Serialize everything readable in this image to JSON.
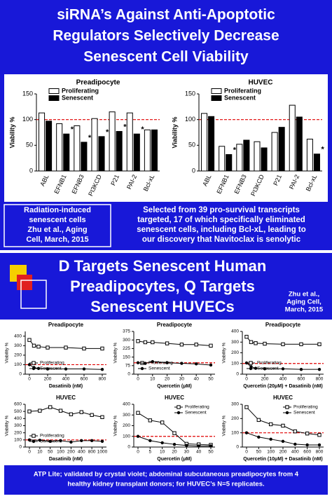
{
  "slide1": {
    "title_lines": [
      "siRNA’s Against Anti-Apoptotic",
      "Regulators Selectively Decrease",
      "Senescent Cell Viability"
    ],
    "left_lines": [
      "Radiation-induced",
      "senescent cells",
      "Zhu et al., Aging",
      "Cell, March, 2015"
    ],
    "right_lines": [
      "Selected from 39 pro-survival transcripts",
      "targeted, 17 of which specifically eliminated",
      "senescent cells, including Bcl-xL, leading to",
      "our discovery that Navitoclax is senolytic"
    ]
  },
  "slide2": {
    "title_lines": [
      "D Targets Senescent Human",
      "Preadipocytes, Q Targets",
      "Senescent HUVECs"
    ],
    "citation_lines": [
      "Zhu et al.,",
      "Aging Cell,",
      "March, 2015"
    ],
    "footer_lines": [
      "ATP Lite; validated by crystal violet; abdominal subcutaneous preadipocytes from 4",
      "healthy kidney transplant donors; for HUVEC’s N=5 replicates."
    ]
  },
  "chart_data": [
    {
      "type": "bar",
      "title": "Preadipocyte",
      "ylabel": "Viability %",
      "categories": [
        "ABL",
        "EFNB1",
        "EFNB3",
        "PI3KCD",
        "P21",
        "PAI-2",
        "Bcl-xL"
      ],
      "series": [
        {
          "name": "Proliferating",
          "color": "#ffffff",
          "values": [
            113,
            92,
            88,
            102,
            115,
            113,
            80
          ]
        },
        {
          "name": "Senescent",
          "color": "#000000",
          "values": [
            97,
            72,
            56,
            67,
            77,
            72,
            80
          ],
          "significance": [
            null,
            "*",
            "*",
            "*",
            "*",
            "*",
            null
          ]
        }
      ],
      "ylim": [
        0,
        150
      ],
      "yticks": [
        0,
        50,
        100,
        150
      ],
      "reference_line": 100,
      "reference_color": "#e00000"
    },
    {
      "type": "bar",
      "title": "HUVEC",
      "ylabel": "Viability %",
      "categories": [
        "ABL",
        "EFNB1",
        "EFNB3",
        "PI3KCD",
        "P21",
        "PAI-2",
        "Bcl-xL"
      ],
      "series": [
        {
          "name": "Proliferating",
          "color": "#ffffff",
          "values": [
            112,
            48,
            52,
            57,
            75,
            128,
            62
          ]
        },
        {
          "name": "Senescent",
          "color": "#000000",
          "values": [
            106,
            32,
            60,
            45,
            85,
            105,
            33
          ],
          "significance": [
            null,
            "*",
            null,
            null,
            null,
            null,
            "*"
          ]
        }
      ],
      "ylim": [
        0,
        150
      ],
      "yticks": [
        0,
        50,
        100,
        150
      ],
      "reference_line": 100,
      "reference_color": "#e00000"
    },
    {
      "type": "line",
      "title": "Preadipocyte",
      "ylabel": "Viability %",
      "xlabel": "Dasatinib (nM)",
      "x": [
        0,
        50,
        100,
        200,
        400,
        600,
        800
      ],
      "xlim": [
        0,
        800
      ],
      "xticks": [
        0,
        200,
        400,
        600,
        800
      ],
      "series": [
        {
          "name": "Proliferating",
          "color": "#000000",
          "marker": "square",
          "values": [
            360,
            300,
            290,
            280,
            280,
            270,
            270
          ]
        },
        {
          "name": "Senescent",
          "color": "#000000",
          "marker": "circle",
          "values": [
            100,
            70,
            60,
            55,
            55,
            55,
            50
          ]
        }
      ],
      "ylim": [
        0,
        450
      ],
      "yticks": [
        0,
        100,
        200,
        300,
        400
      ],
      "reference_line": 100,
      "reference_color": "#e00000",
      "legend": "lower left"
    },
    {
      "type": "line",
      "title": "Preadipocyte",
      "ylabel": "Viability %",
      "xlabel": "Quercetin (μM)",
      "x": [
        0,
        5,
        10,
        20,
        30,
        40,
        50
      ],
      "xlim": [
        0,
        50
      ],
      "xticks": [
        0,
        10,
        20,
        30,
        40,
        50
      ],
      "series": [
        {
          "name": "Proliferating",
          "color": "#000000",
          "marker": "square",
          "values": [
            290,
            280,
            280,
            270,
            260,
            260,
            250
          ]
        },
        {
          "name": "Senescent",
          "color": "#000000",
          "marker": "circle",
          "values": [
            100,
            95,
            110,
            100,
            95,
            90,
            80
          ]
        }
      ],
      "ylim": [
        0,
        375
      ],
      "yticks": [
        0,
        75,
        150,
        225,
        300,
        375
      ],
      "reference_line": 100,
      "reference_color": "#e00000",
      "legend": "lower left"
    },
    {
      "type": "line",
      "title": "Preadipocyte",
      "ylabel": "Viability %",
      "xlabel": "Quercetin (20μM) + Dasatinib (nM)",
      "x": [
        0,
        50,
        100,
        200,
        400,
        600,
        800
      ],
      "xlim": [
        0,
        800
      ],
      "xticks": [
        0,
        200,
        400,
        600,
        800
      ],
      "series": [
        {
          "name": "Proliferating",
          "color": "#000000",
          "marker": "square",
          "values": [
            350,
            300,
            290,
            285,
            280,
            280,
            280
          ]
        },
        {
          "name": "Senescent",
          "color": "#000000",
          "marker": "circle",
          "values": [
            105,
            70,
            55,
            50,
            50,
            45,
            45
          ]
        }
      ],
      "ylim": [
        0,
        400
      ],
      "yticks": [
        0,
        100,
        200,
        300,
        400
      ],
      "reference_line": 100,
      "reference_color": "#e00000",
      "legend": "lower left"
    },
    {
      "type": "line",
      "title": "HUVEC",
      "ylabel": "Viability %",
      "xlabel": "Dasatinib (nM)",
      "categories": [
        "0",
        "10",
        "50",
        "100",
        "200",
        "400",
        "800",
        "1000"
      ],
      "series": [
        {
          "name": "Proliferating",
          "color": "#000000",
          "marker": "square",
          "values": [
            500,
            510,
            560,
            510,
            460,
            490,
            450,
            420
          ]
        },
        {
          "name": "Senescent",
          "color": "#000000",
          "marker": "circle",
          "values": [
            100,
            95,
            80,
            90,
            70,
            90,
            90,
            80
          ]
        }
      ],
      "ylim": [
        0,
        600
      ],
      "yticks": [
        0,
        100,
        200,
        300,
        400,
        500,
        600
      ],
      "reference_line": 100,
      "reference_color": "#e00000",
      "legend": "lower left"
    },
    {
      "type": "line",
      "title": "HUVEC",
      "ylabel": "Viability %",
      "xlabel": "Quercetin (μM)",
      "categories": [
        "0",
        "5",
        "10",
        "20",
        "30",
        "40",
        "50"
      ],
      "series": [
        {
          "name": "Proliferating",
          "color": "#000000",
          "marker": "square",
          "values": [
            320,
            250,
            230,
            130,
            30,
            25,
            20
          ]
        },
        {
          "name": "Senescent",
          "color": "#000000",
          "marker": "circle",
          "values": [
            100,
            60,
            40,
            25,
            15,
            10,
            10
          ]
        }
      ],
      "ylim": [
        0,
        400
      ],
      "yticks": [
        0,
        100,
        200,
        300,
        400
      ],
      "reference_line": 100,
      "reference_color": "#e00000",
      "legend": "upper right"
    },
    {
      "type": "line",
      "title": "HUVEC",
      "ylabel": "Viability %",
      "xlabel": "Quercetin (10μM) + Dasatinib (nM)",
      "categories": [
        "0",
        "50",
        "100",
        "200",
        "400",
        "600",
        "800"
      ],
      "series": [
        {
          "name": "Proliferating",
          "color": "#000000",
          "marker": "square",
          "values": [
            280,
            190,
            160,
            150,
            110,
            95,
            85
          ]
        },
        {
          "name": "Senescent",
          "color": "#000000",
          "marker": "circle",
          "values": [
            100,
            70,
            55,
            40,
            20,
            15,
            15
          ]
        }
      ],
      "ylim": [
        0,
        300
      ],
      "yticks": [
        0,
        100,
        200,
        300
      ],
      "reference_line": 100,
      "reference_color": "#e00000",
      "legend": "upper right"
    }
  ]
}
